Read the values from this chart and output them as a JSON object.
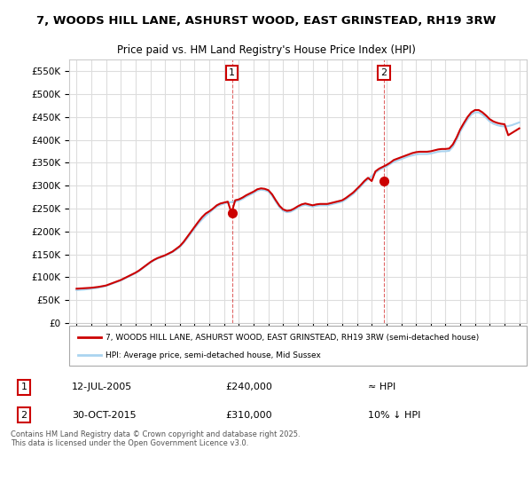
{
  "title": "7, WOODS HILL LANE, ASHURST WOOD, EAST GRINSTEAD, RH19 3RW",
  "subtitle": "Price paid vs. HM Land Registry's House Price Index (HPI)",
  "ylabel": "",
  "xlabel": "",
  "ylim": [
    0,
    575000
  ],
  "yticks": [
    0,
    50000,
    100000,
    150000,
    200000,
    250000,
    300000,
    350000,
    400000,
    450000,
    500000,
    550000
  ],
  "ytick_labels": [
    "£0",
    "£50K",
    "£100K",
    "£150K",
    "£200K",
    "£250K",
    "£300K",
    "£350K",
    "£400K",
    "£450K",
    "£500K",
    "£550K"
  ],
  "xlim_start": 1994.5,
  "xlim_end": 2025.5,
  "xticks": [
    1995,
    1996,
    1997,
    1998,
    1999,
    2000,
    2001,
    2002,
    2003,
    2004,
    2005,
    2006,
    2007,
    2008,
    2009,
    2010,
    2011,
    2012,
    2013,
    2014,
    2015,
    2016,
    2017,
    2018,
    2019,
    2020,
    2021,
    2022,
    2023,
    2024,
    2025
  ],
  "hpi_color": "#aad4f0",
  "price_color": "#cc0000",
  "marker_color": "#cc0000",
  "bg_color": "#ffffff",
  "grid_color": "#dddddd",
  "annotation_box_color": "#cc0000",
  "sale1_x": 2005.53,
  "sale1_y": 240000,
  "sale1_label": "1",
  "sale2_x": 2015.83,
  "sale2_y": 310000,
  "sale2_label": "2",
  "legend_line1": "7, WOODS HILL LANE, ASHURST WOOD, EAST GRINSTEAD, RH19 3RW (semi-detached house)",
  "legend_line2": "HPI: Average price, semi-detached house, Mid Sussex",
  "table_row1": [
    "1",
    "12-JUL-2005",
    "£240,000",
    "≈ HPI"
  ],
  "table_row2": [
    "2",
    "30-OCT-2015",
    "£310,000",
    "10% ↓ HPI"
  ],
  "footnote": "Contains HM Land Registry data © Crown copyright and database right 2025.\nThis data is licensed under the Open Government Licence v3.0.",
  "hpi_data_x": [
    1995.0,
    1995.25,
    1995.5,
    1995.75,
    1996.0,
    1996.25,
    1996.5,
    1996.75,
    1997.0,
    1997.25,
    1997.5,
    1997.75,
    1998.0,
    1998.25,
    1998.5,
    1998.75,
    1999.0,
    1999.25,
    1999.5,
    1999.75,
    2000.0,
    2000.25,
    2000.5,
    2000.75,
    2001.0,
    2001.25,
    2001.5,
    2001.75,
    2002.0,
    2002.25,
    2002.5,
    2002.75,
    2003.0,
    2003.25,
    2003.5,
    2003.75,
    2004.0,
    2004.25,
    2004.5,
    2004.75,
    2005.0,
    2005.25,
    2005.5,
    2005.75,
    2006.0,
    2006.25,
    2006.5,
    2006.75,
    2007.0,
    2007.25,
    2007.5,
    2007.75,
    2008.0,
    2008.25,
    2008.5,
    2008.75,
    2009.0,
    2009.25,
    2009.5,
    2009.75,
    2010.0,
    2010.25,
    2010.5,
    2010.75,
    2011.0,
    2011.25,
    2011.5,
    2011.75,
    2012.0,
    2012.25,
    2012.5,
    2012.75,
    2013.0,
    2013.25,
    2013.5,
    2013.75,
    2014.0,
    2014.25,
    2014.5,
    2014.75,
    2015.0,
    2015.25,
    2015.5,
    2015.75,
    2016.0,
    2016.25,
    2016.5,
    2016.75,
    2017.0,
    2017.25,
    2017.5,
    2017.75,
    2018.0,
    2018.25,
    2018.5,
    2018.75,
    2019.0,
    2019.25,
    2019.5,
    2019.75,
    2020.0,
    2020.25,
    2020.5,
    2020.75,
    2021.0,
    2021.25,
    2021.5,
    2021.75,
    2022.0,
    2022.25,
    2022.5,
    2022.75,
    2023.0,
    2023.25,
    2023.5,
    2023.75,
    2024.0,
    2024.25,
    2024.5,
    2024.75,
    2025.0
  ],
  "hpi_data_y": [
    72000,
    72500,
    73000,
    74000,
    75000,
    76000,
    77500,
    79000,
    81000,
    84000,
    87000,
    90000,
    93000,
    97000,
    101000,
    105000,
    109000,
    114000,
    120000,
    126000,
    132000,
    137000,
    141000,
    144000,
    147000,
    151000,
    155000,
    160000,
    166000,
    175000,
    185000,
    196000,
    207000,
    217000,
    226000,
    234000,
    241000,
    248000,
    254000,
    258000,
    261000,
    263000,
    264000,
    265000,
    267000,
    271000,
    276000,
    280000,
    284000,
    289000,
    291000,
    290000,
    287000,
    278000,
    265000,
    253000,
    245000,
    242000,
    243000,
    247000,
    252000,
    256000,
    258000,
    256000,
    254000,
    256000,
    257000,
    257000,
    257000,
    259000,
    261000,
    263000,
    265000,
    270000,
    276000,
    282000,
    290000,
    298000,
    307000,
    314000,
    321000,
    328000,
    334000,
    338000,
    342000,
    347000,
    352000,
    355000,
    358000,
    361000,
    364000,
    366000,
    368000,
    369000,
    369000,
    369000,
    370000,
    372000,
    374000,
    375000,
    375000,
    376000,
    385000,
    400000,
    418000,
    432000,
    445000,
    455000,
    460000,
    460000,
    455000,
    448000,
    440000,
    435000,
    432000,
    430000,
    429000,
    430000,
    432000,
    435000,
    438000
  ],
  "price_data_x": [
    1995.0,
    1995.25,
    1995.5,
    1995.75,
    1996.0,
    1996.25,
    1996.5,
    1996.75,
    1997.0,
    1997.25,
    1997.5,
    1997.75,
    1998.0,
    1998.25,
    1998.5,
    1998.75,
    1999.0,
    1999.25,
    1999.5,
    1999.75,
    2000.0,
    2000.25,
    2000.5,
    2000.75,
    2001.0,
    2001.25,
    2001.5,
    2001.75,
    2002.0,
    2002.25,
    2002.5,
    2002.75,
    2003.0,
    2003.25,
    2003.5,
    2003.75,
    2004.0,
    2004.25,
    2004.5,
    2004.75,
    2005.0,
    2005.25,
    2005.5,
    2005.75,
    2006.0,
    2006.25,
    2006.5,
    2006.75,
    2007.0,
    2007.25,
    2007.5,
    2007.75,
    2008.0,
    2008.25,
    2008.5,
    2008.75,
    2009.0,
    2009.25,
    2009.5,
    2009.75,
    2010.0,
    2010.25,
    2010.5,
    2010.75,
    2011.0,
    2011.25,
    2011.5,
    2011.75,
    2012.0,
    2012.25,
    2012.5,
    2012.75,
    2013.0,
    2013.25,
    2013.5,
    2013.75,
    2014.0,
    2014.25,
    2014.5,
    2014.75,
    2015.0,
    2015.25,
    2015.5,
    2015.75,
    2016.0,
    2016.25,
    2016.5,
    2016.75,
    2017.0,
    2017.25,
    2017.5,
    2017.75,
    2018.0,
    2018.25,
    2018.5,
    2018.75,
    2019.0,
    2019.25,
    2019.5,
    2019.75,
    2020.0,
    2020.25,
    2020.5,
    2020.75,
    2021.0,
    2021.25,
    2021.5,
    2021.75,
    2022.0,
    2022.25,
    2022.5,
    2022.75,
    2023.0,
    2023.25,
    2023.5,
    2023.75,
    2024.0,
    2024.25,
    2024.5,
    2024.75,
    2025.0
  ],
  "price_data_y": [
    75000,
    75500,
    76000,
    76500,
    77000,
    78000,
    79000,
    80500,
    82000,
    85000,
    88000,
    91000,
    94000,
    98000,
    102000,
    106000,
    110000,
    115000,
    121000,
    127000,
    133000,
    138000,
    142000,
    145000,
    148000,
    152000,
    156000,
    162000,
    168000,
    177000,
    188000,
    199000,
    210000,
    221000,
    231000,
    239000,
    244000,
    250000,
    257000,
    261000,
    263000,
    265000,
    240000,
    268000,
    270000,
    274000,
    279000,
    283000,
    287000,
    292000,
    294000,
    293000,
    290000,
    281000,
    268000,
    256000,
    248000,
    245000,
    246000,
    250000,
    255000,
    259000,
    261000,
    259000,
    257000,
    259000,
    260000,
    260000,
    260000,
    262000,
    264000,
    266000,
    268000,
    273000,
    279000,
    285000,
    293000,
    301000,
    310000,
    317000,
    310000,
    331000,
    337000,
    341000,
    345000,
    350000,
    356000,
    359000,
    362000,
    365000,
    368000,
    371000,
    373000,
    374000,
    374000,
    374000,
    375000,
    377000,
    379000,
    380000,
    380000,
    381000,
    390000,
    405000,
    423000,
    437000,
    450000,
    460000,
    465000,
    465000,
    460000,
    453000,
    445000,
    440000,
    437000,
    435000,
    434000,
    410000,
    415000,
    420000,
    425000
  ]
}
